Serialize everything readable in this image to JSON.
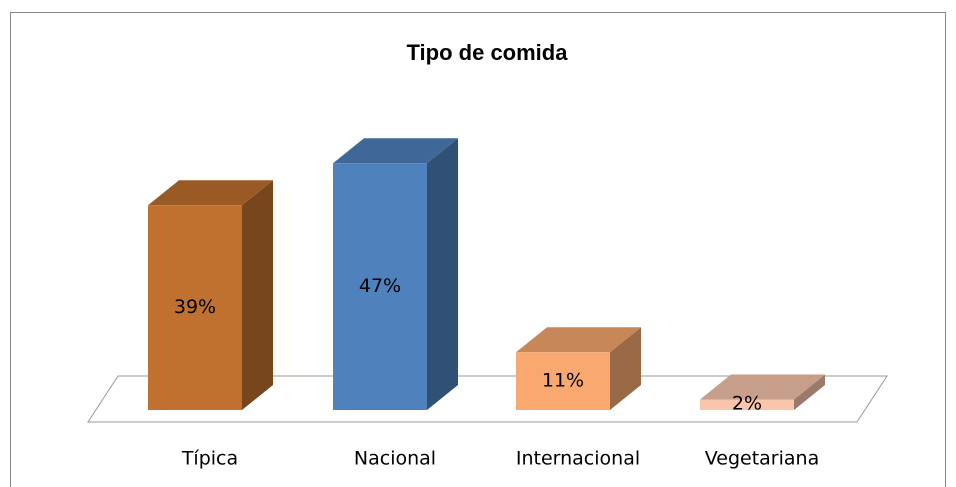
{
  "chart_data": {
    "type": "bar3d",
    "title": "Tipo de comida",
    "categories": [
      "Típica",
      "Nacional",
      "Internacional",
      "Vegetariana"
    ],
    "values": [
      39,
      47,
      11,
      2
    ],
    "value_labels": [
      "39%",
      "47%",
      "11%",
      "2%"
    ],
    "colors": [
      "#C0712F",
      "#4F81BD",
      "#F9A96F",
      "#F9C5AC"
    ]
  }
}
